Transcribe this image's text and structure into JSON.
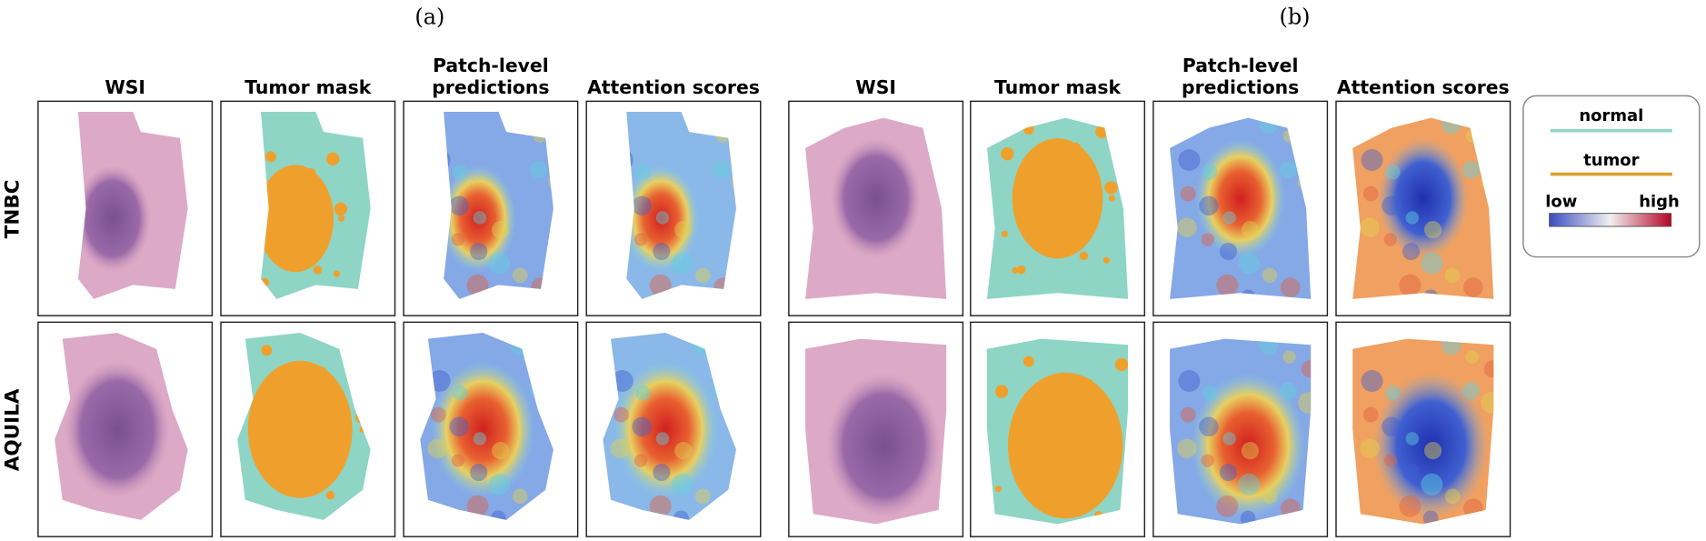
{
  "panels": [
    {
      "label": "(a)",
      "columns": [
        [
          "WSI"
        ],
        [
          "Tumor mask"
        ],
        [
          "Patch-level",
          "predictions"
        ],
        [
          "Attention scores"
        ]
      ]
    },
    {
      "label": "(b)",
      "columns": [
        [
          "WSI"
        ],
        [
          "Tumor mask"
        ],
        [
          "Patch-level",
          "predictions"
        ],
        [
          "Attention scores"
        ]
      ]
    }
  ],
  "rows": [
    "TNBC",
    "AQUILA"
  ],
  "legend": {
    "normal": "normal",
    "tumor": "tumor",
    "low": "low",
    "high": "high"
  }
}
